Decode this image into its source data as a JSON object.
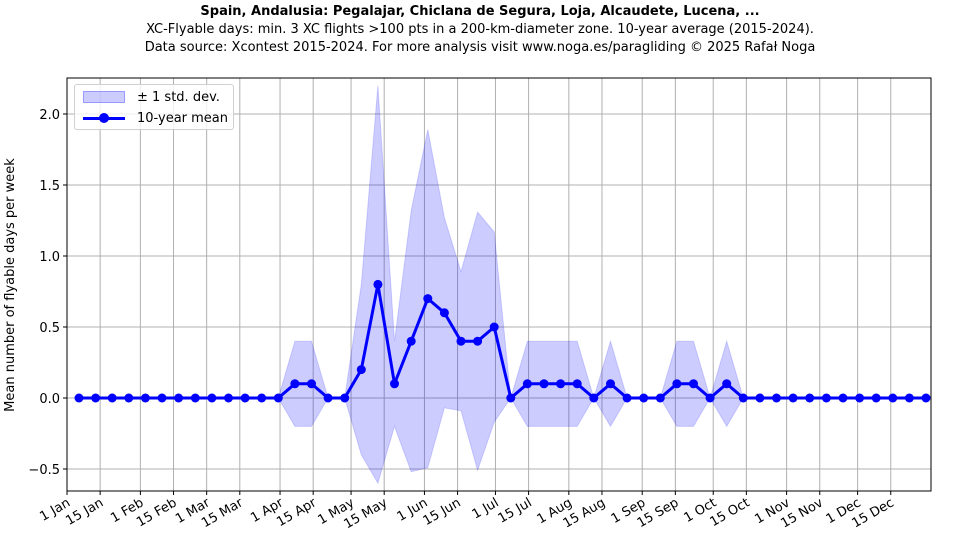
{
  "header": {
    "title": "Spain, Andalusia: Pegalajar, Chiclana de Segura, Loja, Alcaudete, Lucena, ...",
    "subtitle1": "XC-Flyable days: min. 3 XC flights >100 pts in a 200-km-diameter zone. 10-year average (2015-2024).",
    "subtitle2": "Data source: Xcontest 2015-2024. For more analysis visit www.noga.es/paragliding © 2025 Rafał Noga"
  },
  "legend": {
    "band_label": "± 1 std. dev.",
    "line_label": "10-year mean"
  },
  "colors": {
    "line": "#0000ff",
    "band": "#0000ff",
    "grid": "#b0b0b0"
  },
  "chart_data": {
    "type": "line",
    "title": "Spain, Andalusia: Pegalajar, Chiclana de Segura, Loja, Alcaudete, Lucena, ...",
    "xlabel": "",
    "ylabel": "Mean number of flyable days per week",
    "ylim": [
      -0.65,
      2.25
    ],
    "yticks": [
      -0.5,
      0.0,
      0.5,
      1.0,
      1.5,
      2.0
    ],
    "ytick_labels": [
      "−0.5",
      "0.0",
      "0.5",
      "1.0",
      "1.5",
      "2.0"
    ],
    "xtick_labels": [
      "1 Jan",
      "15 Jan",
      "1 Feb",
      "15 Feb",
      "1 Mar",
      "15 Mar",
      "1 Apr",
      "15 Apr",
      "1 May",
      "15 May",
      "1 Jun",
      "15 Jun",
      "1 Jul",
      "15 Jul",
      "1 Aug",
      "15 Aug",
      "1 Sep",
      "15 Sep",
      "1 Oct",
      "15 Oct",
      "1 Nov",
      "15 Nov",
      "1 Dec",
      "15 Dec"
    ],
    "xtick_days": [
      0,
      14,
      31,
      45,
      59,
      73,
      90,
      104,
      120,
      134,
      151,
      165,
      181,
      195,
      212,
      226,
      243,
      257,
      273,
      287,
      304,
      318,
      334,
      348
    ],
    "grid": true,
    "legend_position": "upper left",
    "x_weeks": [
      1,
      2,
      3,
      4,
      5,
      6,
      7,
      8,
      9,
      10,
      11,
      12,
      13,
      14,
      15,
      16,
      17,
      18,
      19,
      20,
      21,
      22,
      23,
      24,
      25,
      26,
      27,
      28,
      29,
      30,
      31,
      32,
      33,
      34,
      35,
      36,
      37,
      38,
      39,
      40,
      41,
      42,
      43,
      44,
      45,
      46,
      47,
      48,
      49,
      50,
      51,
      52
    ],
    "series": [
      {
        "name": "10-year mean",
        "values": [
          0,
          0,
          0,
          0,
          0,
          0,
          0,
          0,
          0,
          0,
          0,
          0,
          0,
          0.1,
          0.1,
          0,
          0,
          0.2,
          0.8,
          0.1,
          0.4,
          0.7,
          0.6,
          0.4,
          0.4,
          0.5,
          0,
          0.1,
          0.1,
          0.1,
          0.1,
          0,
          0.1,
          0,
          0,
          0,
          0.1,
          0.1,
          0,
          0.1,
          0,
          0,
          0,
          0,
          0,
          0,
          0,
          0,
          0,
          0,
          0,
          0
        ]
      },
      {
        "name": "± 1 std. dev. upper",
        "values": [
          0,
          0,
          0,
          0,
          0,
          0,
          0,
          0,
          0,
          0,
          0,
          0,
          0,
          0.4,
          0.4,
          0,
          0,
          0.8,
          2.2,
          0.4,
          1.32,
          1.89,
          1.27,
          0.89,
          1.31,
          1.17,
          0,
          0.4,
          0.4,
          0.4,
          0.4,
          0,
          0.4,
          0,
          0,
          0,
          0.4,
          0.4,
          0,
          0.4,
          0,
          0,
          0,
          0,
          0,
          0,
          0,
          0,
          0,
          0,
          0,
          0
        ]
      },
      {
        "name": "± 1 std. dev. lower",
        "values": [
          0,
          0,
          0,
          0,
          0,
          0,
          0,
          0,
          0,
          0,
          0,
          0,
          0,
          -0.2,
          -0.2,
          0,
          0,
          -0.4,
          -0.6,
          -0.2,
          -0.52,
          -0.49,
          -0.07,
          -0.09,
          -0.51,
          -0.17,
          0,
          -0.2,
          -0.2,
          -0.2,
          -0.2,
          0,
          -0.2,
          0,
          0,
          0,
          -0.2,
          -0.2,
          0,
          -0.2,
          0,
          0,
          0,
          0,
          0,
          0,
          0,
          0,
          0,
          0,
          0,
          0
        ]
      }
    ]
  }
}
